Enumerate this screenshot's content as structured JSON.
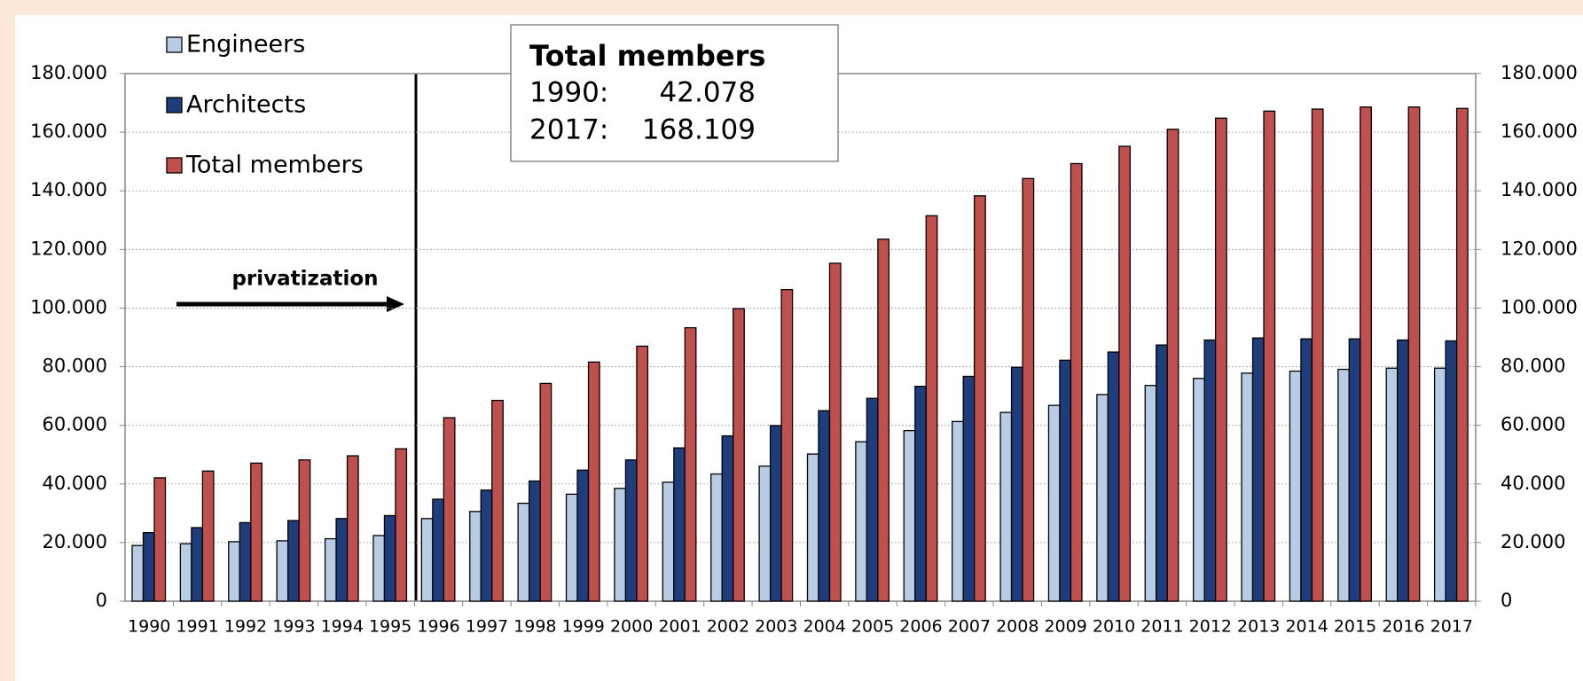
{
  "chart_data": {
    "type": "bar",
    "categories": [
      "1990",
      "1991",
      "1992",
      "1993",
      "1994",
      "1995",
      "1996",
      "1997",
      "1998",
      "1999",
      "2000",
      "2001",
      "2002",
      "2003",
      "2004",
      "2005",
      "2006",
      "2007",
      "2008",
      "2009",
      "2010",
      "2011",
      "2012",
      "2013",
      "2014",
      "2015",
      "2016",
      "2017"
    ],
    "series": [
      {
        "name": "Engineers",
        "color": "#b8cce4",
        "values": [
          19000,
          19600,
          20300,
          20600,
          21300,
          22400,
          28200,
          30600,
          33400,
          36500,
          38500,
          40600,
          43400,
          46100,
          50200,
          54400,
          58200,
          61300,
          64400,
          66800,
          70500,
          73600,
          76000,
          77800,
          78500,
          79100,
          79500,
          79500
        ]
      },
      {
        "name": "Architects",
        "color": "#1f3d7a",
        "values": [
          23400,
          25100,
          26800,
          27500,
          28200,
          29200,
          34800,
          37900,
          41000,
          44700,
          48200,
          52300,
          56400,
          59900,
          65000,
          69200,
          73300,
          76700,
          79800,
          82200,
          85000,
          87400,
          89100,
          89800,
          89500,
          89500,
          89100,
          88800
        ]
      },
      {
        "name": "Total members",
        "color": "#c0504d",
        "values": [
          42078,
          44400,
          47100,
          48200,
          49600,
          52000,
          62600,
          68500,
          74300,
          81600,
          87000,
          93300,
          99800,
          106300,
          115300,
          123500,
          131500,
          138300,
          144200,
          149300,
          155200,
          161000,
          164800,
          167200,
          167900,
          168600,
          168600,
          168109
        ]
      }
    ],
    "ylim": [
      0,
      180000
    ],
    "yticks": [
      0,
      {
        "value": 20000,
        "label": "20.000"
      },
      {
        "value": 40000,
        "label": "40.000"
      },
      {
        "value": 60000,
        "label": "60.000"
      },
      {
        "value": 80000,
        "label": "80.000"
      },
      {
        "value": 100000,
        "label": "100.000"
      },
      {
        "value": 120000,
        "label": "120.000"
      },
      {
        "value": 140000,
        "label": "140.000"
      },
      {
        "value": 160000,
        "label": "160.000"
      },
      {
        "value": 180000,
        "label": "180.000"
      }
    ],
    "y2lim": [
      0,
      180000
    ],
    "y2ticks": [
      0,
      {
        "value": 20000,
        "label": "20.000"
      },
      {
        "value": 40000,
        "label": "40.000"
      },
      {
        "value": 60000,
        "label": "60.000"
      },
      {
        "value": 80000,
        "label": "80.000"
      },
      {
        "value": 100000,
        "label": "100.000"
      },
      {
        "value": 120000,
        "label": "120.000"
      },
      {
        "value": 140000,
        "label": "140.000"
      },
      {
        "value": 160000,
        "label": "160.000"
      },
      {
        "value": 180000,
        "label": "180.000"
      }
    ],
    "grid": true,
    "legend": "top-left",
    "annotation": "privatization",
    "info_box": {
      "title": "Total members",
      "rows": [
        [
          "1990:",
          "42.078"
        ],
        [
          "2017:",
          "168.109"
        ]
      ]
    }
  }
}
